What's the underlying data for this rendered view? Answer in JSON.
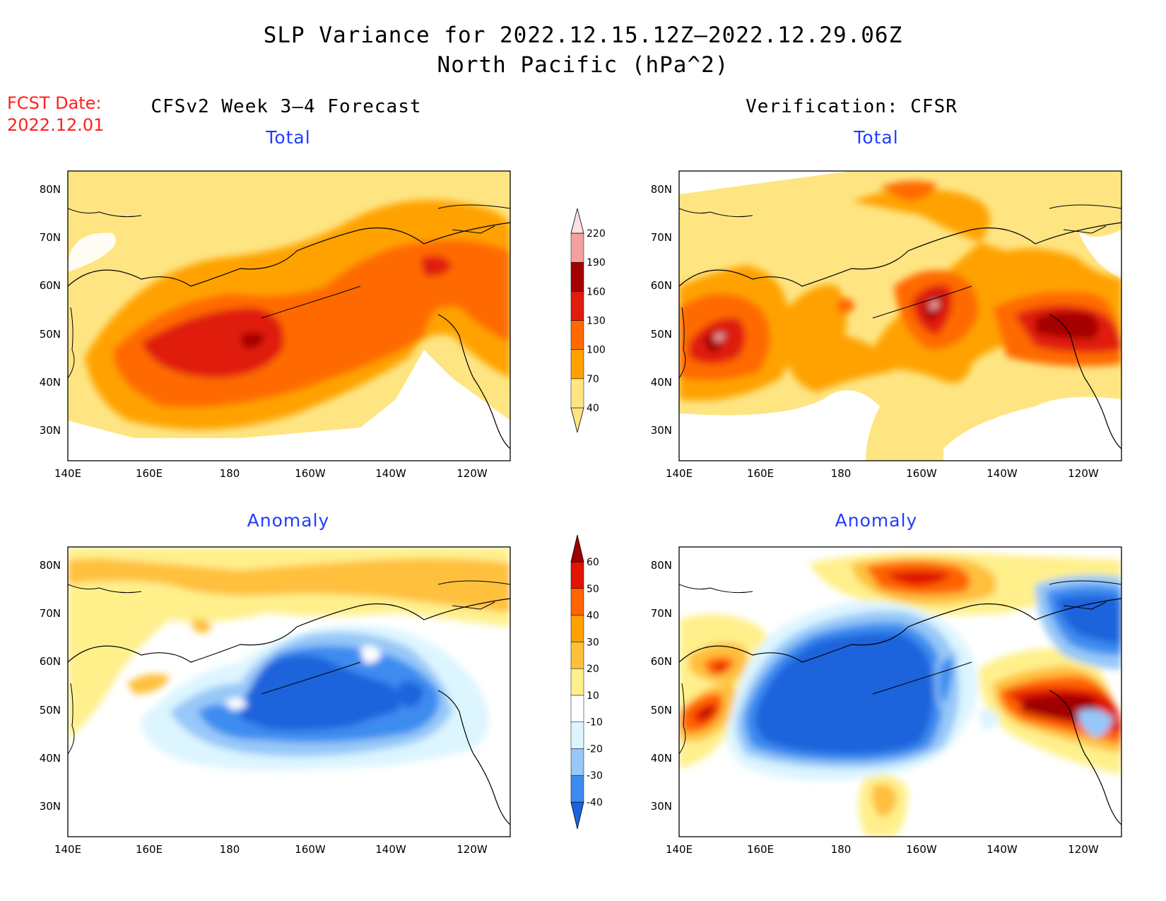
{
  "title_line1": "SLP Variance for 2022.12.15.12Z–2022.12.29.06Z",
  "title_line2": "North Pacific (hPa^2)",
  "fcst_label": "FCST Date:",
  "fcst_date": "2022.12.01",
  "left_column_title": "CFSv2 Week 3–4 Forecast",
  "right_column_title": "Verification: CFSR",
  "panels": {
    "forecast_total": "Total",
    "verification_total": "Total",
    "forecast_anomaly": "Anomaly",
    "verification_anomaly": "Anomaly"
  },
  "axes": {
    "lat_ticks": [
      "80N",
      "70N",
      "60N",
      "50N",
      "40N",
      "30N"
    ],
    "lon_ticks": [
      "140E",
      "160E",
      "180",
      "160W",
      "140W",
      "120W"
    ]
  },
  "total_colorbar": {
    "levels": [
      "40",
      "70",
      "100",
      "130",
      "160",
      "190",
      "220"
    ],
    "colors": [
      "#fee582",
      "#ffa200",
      "#ff6a00",
      "#e01c0c",
      "#a50000",
      "#f5a0a0",
      "#fde0e0"
    ]
  },
  "anomaly_colorbar": {
    "levels": [
      "-40",
      "-30",
      "-20",
      "-10",
      "10",
      "20",
      "30",
      "40",
      "50",
      "60"
    ],
    "colors": [
      "#1c64dc",
      "#3c8cf0",
      "#96c8f8",
      "#dcf5ff",
      "#ffffff",
      "#fff08c",
      "#ffc03c",
      "#ffa000",
      "#ff6400",
      "#e01400",
      "#a00000"
    ]
  }
}
